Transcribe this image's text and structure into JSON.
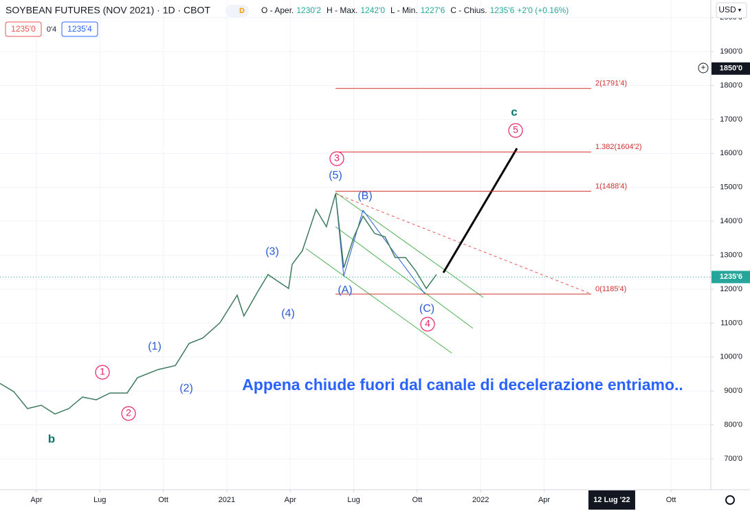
{
  "header": {
    "symbol": "SOYBEAN FUTURES (NOV 2021) · 1D · CBOT",
    "badge": "D",
    "ohlc": [
      {
        "label": "O - Aper.",
        "value": "1230'2"
      },
      {
        "label": "H - Max.",
        "value": "1242'0"
      },
      {
        "label": "L - Min.",
        "value": "1227'6"
      },
      {
        "label": "C - Chius.",
        "value": "1235'6"
      }
    ],
    "change": "+2'0 (+0.16%)",
    "bid": "1235'0",
    "spread": "0'4",
    "ask": "1235'4",
    "currency": "USD"
  },
  "chart_data": {
    "type": "line",
    "color": "#3d7a5c",
    "x": [
      1.28,
      1.93,
      2.58,
      3.23,
      3.88,
      4.53,
      5.18,
      5.83,
      6.48,
      7.29,
      7.78,
      8.75,
      9.57,
      10.22,
      10.87,
      11.68,
      12.49,
      12.81,
      13.46,
      13.95,
      14.44,
      14.92,
      15.09,
      15.57,
      16.22,
      16.71,
      17.14,
      17.53,
      18.01,
      18.44,
      18.99,
      19.48,
      19.96,
      20.45,
      20.94,
      21.43,
      21.91
    ],
    "values": [
      922,
      898,
      848,
      858,
      832,
      848,
      882,
      874,
      894,
      894,
      939,
      963,
      975,
      1040,
      1056,
      1101,
      1182,
      1121,
      1192,
      1243,
      1222,
      1202,
      1273,
      1313,
      1435,
      1384,
      1481,
      1263,
      1354,
      1415,
      1364,
      1354,
      1293,
      1293,
      1253,
      1202,
      1243
    ],
    "xlim": [
      1.28,
      34.88
    ],
    "xticks": [
      {
        "value": 3,
        "label": "Apr"
      },
      {
        "value": 6,
        "label": "Lug"
      },
      {
        "value": 9,
        "label": "Ott"
      },
      {
        "value": 12,
        "label": "2021"
      },
      {
        "value": 15,
        "label": "Apr"
      },
      {
        "value": 18,
        "label": "Lug"
      },
      {
        "value": 21,
        "label": "Ott"
      },
      {
        "value": 24,
        "label": "2022"
      },
      {
        "value": 27,
        "label": "Apr"
      },
      {
        "value": 33,
        "label": "Ott"
      }
    ],
    "ylim": [
      609,
      2052
    ],
    "yticks": [
      {
        "value": 700,
        "label": "700'0"
      },
      {
        "value": 800,
        "label": "800'0"
      },
      {
        "value": 900,
        "label": "900'0"
      },
      {
        "value": 1000,
        "label": "1000'0"
      },
      {
        "value": 1100,
        "label": "1100'0"
      },
      {
        "value": 1200,
        "label": "1200'0"
      },
      {
        "value": 1300,
        "label": "1300'0"
      },
      {
        "value": 1400,
        "label": "1400'0"
      },
      {
        "value": 1500,
        "label": "1500'0"
      },
      {
        "value": 1600,
        "label": "1600'0"
      },
      {
        "value": 1700,
        "label": "1700'0"
      },
      {
        "value": 1800,
        "label": "1800'0"
      },
      {
        "value": 1900,
        "label": "1900'0"
      },
      {
        "value": 2000,
        "label": "2000'0"
      }
    ],
    "grid": true,
    "last_price": {
      "value": 1235.75,
      "label": "1235'6"
    },
    "crosshair": {
      "x": {
        "value": 30.2,
        "label": "12 Lug '22"
      },
      "y": {
        "value": 1850,
        "label": "1850'0"
      }
    },
    "levels": [
      {
        "value": 1791.5,
        "label": "2(1791'4)"
      },
      {
        "value": 1604.25,
        "label": "1.382(1604'2)"
      },
      {
        "value": 1488.5,
        "label": "1(1488'4)"
      },
      {
        "value": 1185.5,
        "label": "0(1185'4)"
      }
    ],
    "wave_labels": [
      "c",
      "5",
      "3",
      "(5)",
      "(B)",
      "(3)",
      "(A)",
      "(4)",
      "(C)",
      "4",
      "(1)",
      "1",
      "(2)",
      "2",
      "b"
    ],
    "note": "Appena chiude fuori dal canale di decelerazione entriamo.."
  }
}
